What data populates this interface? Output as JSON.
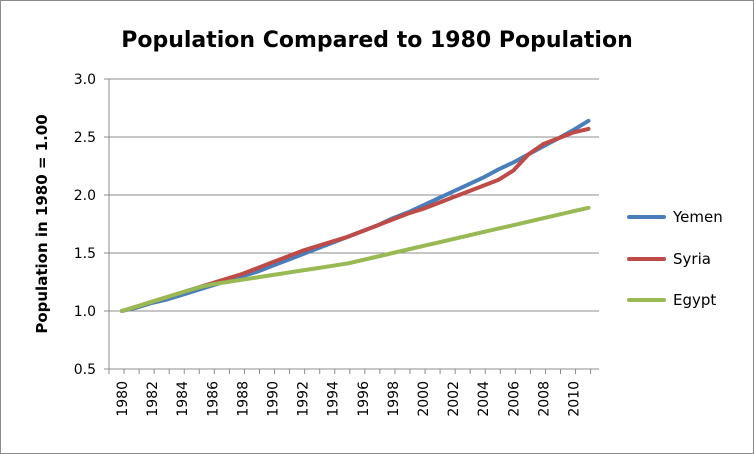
{
  "chart_data": {
    "type": "line",
    "title": "Population Compared to 1980 Population",
    "xlabel": "",
    "ylabel": "Population in 1980 = 1.00",
    "xlim": [
      1980,
      2011
    ],
    "ylim": [
      0.5,
      3.0
    ],
    "y_ticks": [
      "0.5",
      "1.0",
      "1.5",
      "2.0",
      "2.5",
      "3.0"
    ],
    "x_ticks": [
      "1980",
      "1982",
      "1984",
      "1986",
      "1988",
      "1990",
      "1992",
      "1994",
      "1996",
      "1998",
      "2000",
      "2002",
      "2004",
      "2006",
      "2008",
      "2010"
    ],
    "grid": "horizontal",
    "legend_position": "right",
    "x": [
      1980,
      1981,
      1982,
      1983,
      1984,
      1985,
      1986,
      1987,
      1988,
      1989,
      1990,
      1991,
      1992,
      1993,
      1994,
      1995,
      1996,
      1997,
      1998,
      1999,
      2000,
      2001,
      2002,
      2003,
      2004,
      2005,
      2006,
      2007,
      2008,
      2009,
      2010,
      2011
    ],
    "series": [
      {
        "name": "Yemen",
        "color": "#4a7ebb",
        "values": [
          1.0,
          1.03,
          1.07,
          1.1,
          1.14,
          1.18,
          1.22,
          1.26,
          1.3,
          1.34,
          1.39,
          1.44,
          1.49,
          1.54,
          1.59,
          1.64,
          1.69,
          1.74,
          1.8,
          1.85,
          1.91,
          1.97,
          2.03,
          2.09,
          2.15,
          2.22,
          2.28,
          2.35,
          2.42,
          2.49,
          2.56,
          2.64
        ]
      },
      {
        "name": "Syria",
        "color": "#be4b48",
        "values": [
          1.0,
          1.04,
          1.08,
          1.12,
          1.16,
          1.2,
          1.24,
          1.28,
          1.32,
          1.37,
          1.42,
          1.47,
          1.52,
          1.56,
          1.6,
          1.64,
          1.69,
          1.74,
          1.79,
          1.84,
          1.88,
          1.93,
          1.98,
          2.03,
          2.08,
          2.13,
          2.21,
          2.35,
          2.44,
          2.49,
          2.54,
          2.57
        ]
      },
      {
        "name": "Egypt",
        "color": "#98b954",
        "values": [
          1.0,
          1.04,
          1.08,
          1.12,
          1.16,
          1.2,
          1.23,
          1.25,
          1.27,
          1.29,
          1.31,
          1.33,
          1.35,
          1.37,
          1.39,
          1.41,
          1.44,
          1.47,
          1.5,
          1.53,
          1.56,
          1.59,
          1.62,
          1.65,
          1.68,
          1.71,
          1.74,
          1.77,
          1.8,
          1.83,
          1.86,
          1.89
        ]
      }
    ]
  }
}
